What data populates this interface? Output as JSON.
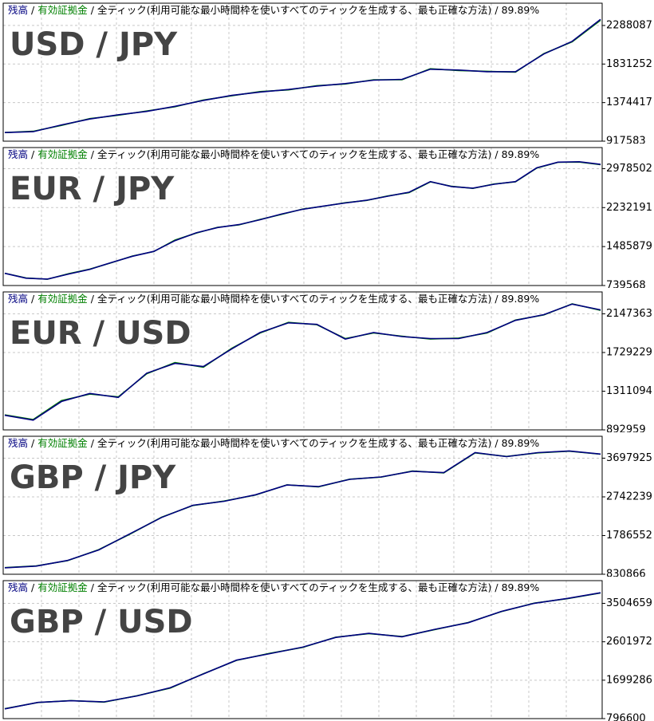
{
  "chart_data": [
    {
      "type": "line",
      "title": "USD / JPY",
      "separator": "/",
      "mode": "全ティック(利用可能な最小時間枠を使いすべてのティックを生成する、最も正確な方法)",
      "quality": "89.89%",
      "ylim": [
        917583,
        2552000
      ],
      "yticks": [
        917583,
        1374417,
        1831252,
        2288087
      ],
      "grid": true,
      "series": [
        {
          "name": "残高",
          "color": "#000080",
          "values": [
            1020000,
            1030000,
            1110000,
            1180000,
            1230000,
            1270000,
            1330000,
            1400000,
            1460000,
            1500000,
            1530000,
            1570000,
            1600000,
            1640000,
            1650000,
            1770000,
            1760000,
            1740000,
            1740000,
            1950000,
            2100000,
            2360000
          ]
        },
        {
          "name": "有効証拠金",
          "color": "#008000",
          "values": [
            1020000,
            1035000,
            1105000,
            1185000,
            1225000,
            1275000,
            1325000,
            1405000,
            1455000,
            1505000,
            1525000,
            1575000,
            1595000,
            1645000,
            1645000,
            1775000,
            1755000,
            1745000,
            1735000,
            1955000,
            2095000,
            2350000
          ]
        }
      ]
    },
    {
      "type": "line",
      "title": "EUR / JPY",
      "separator": "/",
      "mode": "全ティック(利用可能な最小時間枠を使いすべてのティックを生成する、最も正確な方法)",
      "quality": "89.89%",
      "ylim": [
        739568,
        3382500
      ],
      "yticks": [
        739568,
        1485879,
        2232191,
        2978502
      ],
      "grid": true,
      "series": [
        {
          "name": "残高",
          "color": "#000080",
          "values": [
            973000,
            880000,
            864000,
            960000,
            1050000,
            1180000,
            1300000,
            1393000,
            1600000,
            1750000,
            1850000,
            1906000,
            2000000,
            2108000,
            2200000,
            2263000,
            2320000,
            2372000,
            2450000,
            2527000,
            2730000,
            2636000,
            2605000,
            2680000,
            2730000,
            2994000,
            3103000,
            3110000,
            3060000
          ]
        },
        {
          "name": "有効証拠金",
          "color": "#008000",
          "values": [
            975000,
            885000,
            860000,
            965000,
            1055000,
            1175000,
            1305000,
            1390000,
            1610000,
            1745000,
            1855000,
            1900000,
            2005000,
            2100000,
            2205000,
            2260000,
            2325000,
            2370000,
            2455000,
            2520000,
            2725000,
            2640000,
            2600000,
            2685000,
            2725000,
            2990000,
            3100000,
            3105000,
            3055000
          ]
        }
      ]
    },
    {
      "type": "line",
      "title": "EUR / USD",
      "separator": "/",
      "mode": "全ティック(利用可能な最小時間枠を使いすべてのティックを生成する、最も正確な方法)",
      "quality": "89.89%",
      "ylim": [
        892959,
        2384000
      ],
      "yticks": [
        892959,
        1311094,
        1729229,
        2147363
      ],
      "grid": true,
      "series": [
        {
          "name": "残高",
          "color": "#000080",
          "values": [
            1051000,
            998000,
            1200000,
            1287000,
            1244000,
            1506000,
            1612000,
            1577000,
            1769000,
            1945000,
            2050000,
            2033000,
            1875000,
            1945000,
            1901000,
            1880000,
            1880000,
            1945000,
            2076000,
            2138000,
            2252000,
            2190000
          ]
        },
        {
          "name": "有効証拠金",
          "color": "#008000",
          "values": [
            1055000,
            1005000,
            1210000,
            1280000,
            1250000,
            1500000,
            1620000,
            1570000,
            1775000,
            1940000,
            2055000,
            2030000,
            1880000,
            1940000,
            1905000,
            1875000,
            1885000,
            1940000,
            2080000,
            2135000,
            2255000,
            2185000
          ]
        }
      ]
    },
    {
      "type": "line",
      "title": "GBP / JPY",
      "separator": "/",
      "mode": "全ティック(利用可能な最小時間枠を使いすべてのティックを生成する、最も正確な方法)",
      "quality": "89.89%",
      "ylim": [
        830866,
        4239000
      ],
      "yticks": [
        830866,
        1786552,
        2742239,
        3697925
      ],
      "grid": true,
      "series": [
        {
          "name": "残高",
          "color": "#000080",
          "values": [
            991000,
            1031000,
            1171000,
            1432000,
            1833000,
            2233000,
            2534000,
            2634000,
            2794000,
            3035000,
            2995000,
            3175000,
            3235000,
            3375000,
            3340000,
            3836000,
            3736000,
            3836000,
            3876000,
            3800000
          ]
        },
        {
          "name": "有効証拠金",
          "color": "#008000",
          "values": [
            995000,
            1035000,
            1165000,
            1440000,
            1825000,
            2240000,
            2530000,
            2640000,
            2790000,
            3040000,
            2990000,
            3180000,
            3230000,
            3380000,
            3335000,
            3830000,
            3740000,
            3830000,
            3870000,
            3795000
          ]
        }
      ]
    },
    {
      "type": "line",
      "title": "GBP / USD",
      "separator": "/",
      "mode": "全ティック(利用可能な最小時間枠を使いすべてのティックを生成する、最も正確な方法)",
      "quality": "89.89%",
      "ylim": [
        796600,
        4039000
      ],
      "yticks": [
        796600,
        1699286,
        2601972,
        3504659
      ],
      "grid": true,
      "series": [
        {
          "name": "残高",
          "color": "#000080",
          "values": [
            1026000,
            1178000,
            1216000,
            1190000,
            1331000,
            1522000,
            1846000,
            2171000,
            2323000,
            2476000,
            2705000,
            2800000,
            2720000,
            2896000,
            3049000,
            3316000,
            3507000,
            3621000,
            3755000
          ]
        },
        {
          "name": "有効証拠金",
          "color": "#008000",
          "values": [
            1030000,
            1175000,
            1220000,
            1185000,
            1335000,
            1515000,
            1850000,
            2165000,
            2330000,
            2470000,
            2710000,
            2795000,
            2725000,
            2890000,
            3055000,
            3310000,
            3510000,
            3615000,
            3750000
          ]
        }
      ]
    }
  ]
}
